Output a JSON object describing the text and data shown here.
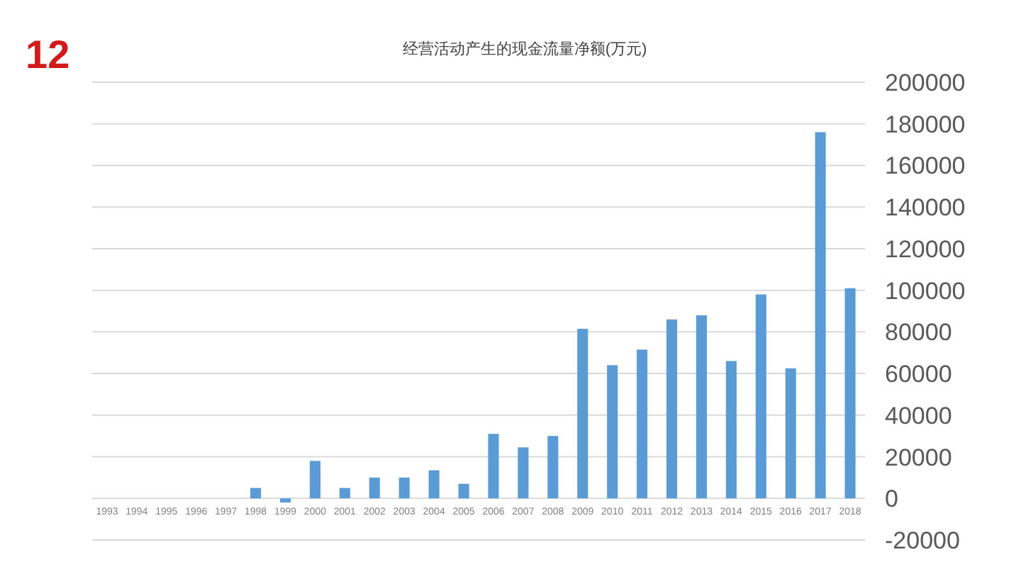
{
  "chart_data": {
    "type": "bar",
    "title": "经营活动产生的现金流量净额(万元)",
    "annotations": [
      "12"
    ],
    "categories": [
      "1993",
      "1994",
      "1995",
      "1996",
      "1997",
      "1998",
      "1999",
      "2000",
      "2001",
      "2002",
      "2003",
      "2004",
      "2005",
      "2006",
      "2007",
      "2008",
      "2009",
      "2010",
      "2011",
      "2012",
      "2013",
      "2014",
      "2015",
      "2016",
      "2017",
      "2018"
    ],
    "values": [
      0,
      0,
      0,
      0,
      0,
      5000,
      -2000,
      18000,
      5000,
      10000,
      10000,
      13500,
      7000,
      31000,
      24500,
      30000,
      81500,
      64000,
      71500,
      86000,
      88000,
      66000,
      98000,
      62500,
      176000,
      101000
    ],
    "color": "#5b9bd5",
    "ylim": [
      -20000,
      200000
    ],
    "yticks": [
      -20000,
      0,
      20000,
      40000,
      60000,
      80000,
      100000,
      120000,
      140000,
      160000,
      180000,
      200000
    ],
    "grid": "y"
  }
}
